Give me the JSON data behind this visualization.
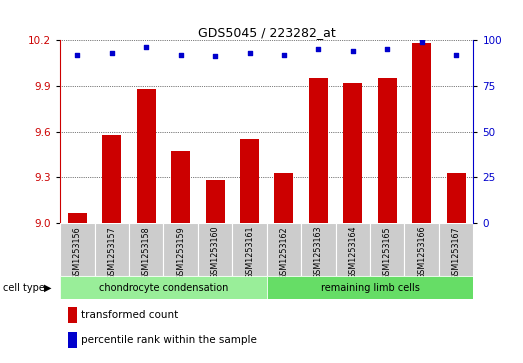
{
  "title": "GDS5045 / 223282_at",
  "samples": [
    "GSM1253156",
    "GSM1253157",
    "GSM1253158",
    "GSM1253159",
    "GSM1253160",
    "GSM1253161",
    "GSM1253162",
    "GSM1253163",
    "GSM1253164",
    "GSM1253165",
    "GSM1253166",
    "GSM1253167"
  ],
  "transformed_count": [
    9.07,
    9.58,
    9.88,
    9.47,
    9.28,
    9.55,
    9.33,
    9.95,
    9.92,
    9.95,
    10.18,
    9.33
  ],
  "percentile_rank": [
    92,
    93,
    96,
    92,
    91,
    93,
    92,
    95,
    94,
    95,
    99,
    92
  ],
  "ylim_left": [
    9.0,
    10.2
  ],
  "ylim_right": [
    0,
    100
  ],
  "yticks_left": [
    9.0,
    9.3,
    9.6,
    9.9,
    10.2
  ],
  "yticks_right": [
    0,
    25,
    50,
    75,
    100
  ],
  "bar_color": "#cc0000",
  "dot_color": "#0000cc",
  "bar_width": 0.55,
  "group1_label": "chondrocyte condensation",
  "group2_label": "remaining limb cells",
  "group1_count": 6,
  "group2_count": 6,
  "cell_type_label": "cell type",
  "legend_bar_label": "transformed count",
  "legend_dot_label": "percentile rank within the sample",
  "group_bg1": "#99ee99",
  "group_bg2": "#66dd66",
  "sample_box_color": "#cccccc"
}
